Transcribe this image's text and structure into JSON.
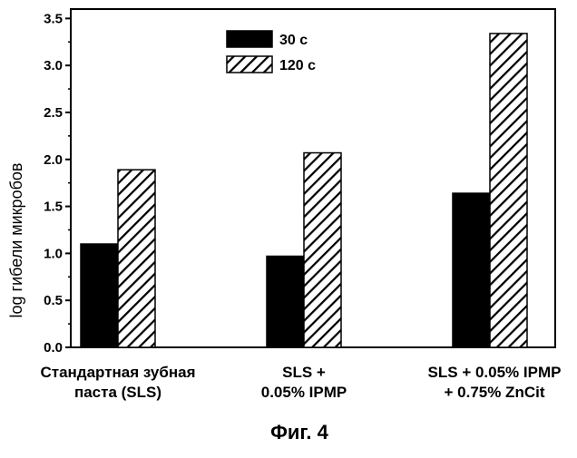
{
  "chart_data": {
    "type": "bar",
    "title": "",
    "xlabel": "",
    "ylabel": "log гибели микробов",
    "ylim": [
      0,
      3.6
    ],
    "yticks": [
      "0.0",
      "0.5",
      "1.0",
      "1.5",
      "2.0",
      "2.5",
      "3.0",
      "3.5"
    ],
    "grid": false,
    "legend_position": "top-center",
    "categories": [
      [
        "Стандартная зубная",
        "паста (SLS)"
      ],
      [
        "SLS +",
        "0.05% IPMP"
      ],
      [
        "SLS + 0.05% IPMP",
        "+ 0.75% ZnCit"
      ]
    ],
    "series": [
      {
        "name": "30 с",
        "pattern": "solid",
        "color": "#000000",
        "values": [
          1.1,
          0.97,
          1.64
        ]
      },
      {
        "name": "120 с",
        "pattern": "hatch",
        "color": "#000000",
        "values": [
          1.89,
          2.07,
          3.34
        ]
      }
    ]
  },
  "caption": "Фиг. 4"
}
